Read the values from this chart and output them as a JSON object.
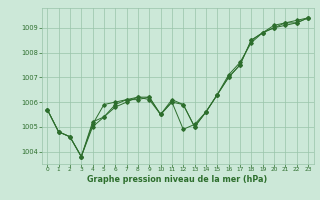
{
  "xlabel": "Graphe pression niveau de la mer (hPa)",
  "background_color": "#cce8d8",
  "grid_color": "#99c4aa",
  "line_color": "#2d6e2d",
  "marker_color": "#2d6e2d",
  "ylim": [
    1003.5,
    1009.8
  ],
  "xlim": [
    -0.5,
    23.5
  ],
  "yticks": [
    1004,
    1005,
    1006,
    1007,
    1008,
    1009
  ],
  "xticks": [
    0,
    1,
    2,
    3,
    4,
    5,
    6,
    7,
    8,
    9,
    10,
    11,
    12,
    13,
    14,
    15,
    16,
    17,
    18,
    19,
    20,
    21,
    22,
    23
  ],
  "series": [
    [
      1005.7,
      1004.8,
      1004.6,
      1003.8,
      1005.1,
      1005.9,
      1006.0,
      1006.1,
      1006.1,
      1006.2,
      1005.5,
      1006.1,
      1005.9,
      1005.0,
      1005.6,
      1006.3,
      1007.0,
      1007.5,
      1008.5,
      1008.8,
      1009.1,
      1009.2,
      1009.2,
      1009.4
    ],
    [
      1005.7,
      1004.8,
      1004.6,
      1003.8,
      1005.2,
      1005.4,
      1005.9,
      1006.1,
      1006.2,
      1006.2,
      1005.5,
      1006.0,
      1005.9,
      1005.0,
      1005.6,
      1006.3,
      1007.1,
      1007.6,
      1008.4,
      1008.8,
      1009.0,
      1009.2,
      1009.3,
      1009.4
    ],
    [
      1005.7,
      1004.8,
      1004.6,
      1003.8,
      1005.0,
      1005.4,
      1005.8,
      1006.0,
      1006.2,
      1006.1,
      1005.5,
      1006.0,
      1004.9,
      1005.1,
      1005.6,
      1006.3,
      1007.0,
      1007.5,
      1008.5,
      1008.8,
      1009.0,
      1009.1,
      1009.2,
      1009.4
    ]
  ]
}
